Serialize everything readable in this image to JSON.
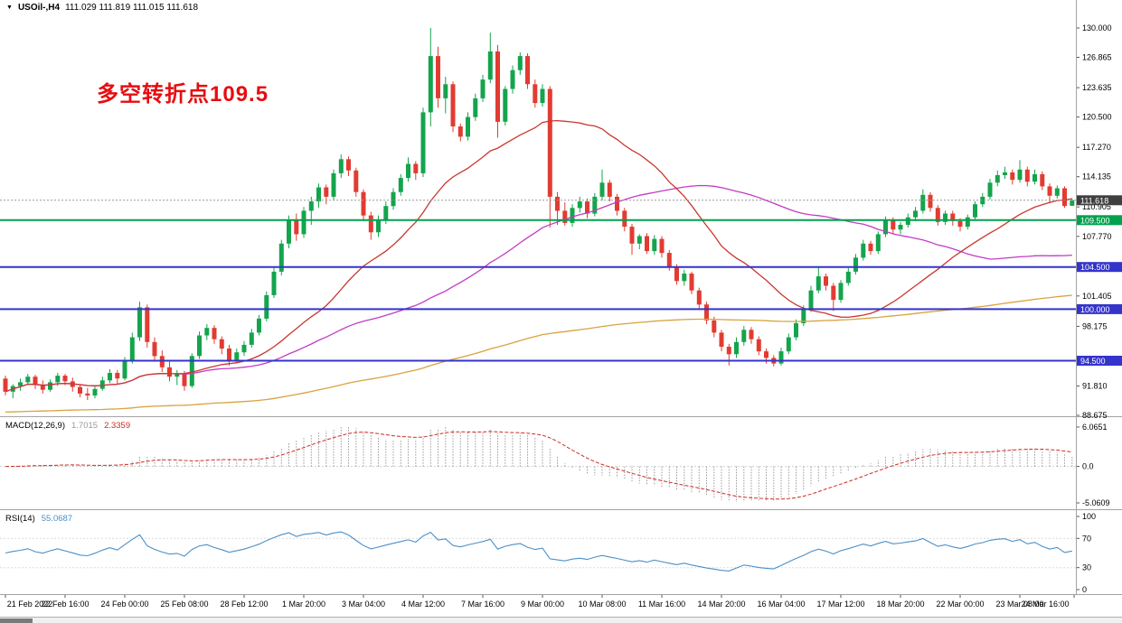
{
  "header": {
    "marker": "▼",
    "symbol": "USOil-,H4",
    "ohlc": "111.029 111.819 111.015 111.618"
  },
  "chart_data": {
    "type": "candlestick",
    "symbol": "USOil-",
    "timeframe": "H4",
    "x_axis": {
      "labels": [
        "21 Feb 2022",
        "22 Feb 16:00",
        "24 Feb 00:00",
        "25 Feb 08:00",
        "28 Feb 12:00",
        "1 Mar 20:00",
        "3 Mar 04:00",
        "4 Mar 12:00",
        "7 Mar 16:00",
        "9 Mar 00:00",
        "10 Mar 08:00",
        "11 Mar 16:00",
        "14 Mar 20:00",
        "16 Mar 04:00",
        "17 Mar 12:00",
        "18 Mar 20:00",
        "22 Mar 00:00",
        "23 Mar 08:00",
        "24 Mar 16:00"
      ]
    },
    "price_panel": {
      "ylim": [
        88.675,
        130.0
      ],
      "y_ticks": [
        "130.000",
        "126.865",
        "123.635",
        "120.500",
        "117.270",
        "114.135",
        "110.905",
        "107.770",
        "101.405",
        "98.175",
        "91.810",
        "88.675"
      ],
      "up_color": "#14a44d",
      "down_color": "#e23b31",
      "candles": [
        [
          92.6,
          92.9,
          90.8,
          91.2
        ],
        [
          91.2,
          92.0,
          90.5,
          91.8
        ],
        [
          91.8,
          92.6,
          91.3,
          92.2
        ],
        [
          92.2,
          93.1,
          91.9,
          92.8
        ],
        [
          92.8,
          93.0,
          91.5,
          91.9
        ],
        [
          91.9,
          92.4,
          91.0,
          91.4
        ],
        [
          91.4,
          92.5,
          91.2,
          92.2
        ],
        [
          92.2,
          93.2,
          91.8,
          92.9
        ],
        [
          92.9,
          93.1,
          91.9,
          92.3
        ],
        [
          92.3,
          92.7,
          91.2,
          91.7
        ],
        [
          91.7,
          92.0,
          90.6,
          91.0
        ],
        [
          91.0,
          91.6,
          90.3,
          90.8
        ],
        [
          90.8,
          91.9,
          90.5,
          91.5
        ],
        [
          91.5,
          92.8,
          91.3,
          92.4
        ],
        [
          92.4,
          93.6,
          92.1,
          93.2
        ],
        [
          93.2,
          93.5,
          92.0,
          92.6
        ],
        [
          92.6,
          94.9,
          92.4,
          94.5
        ],
        [
          94.5,
          97.5,
          94.2,
          97.0
        ],
        [
          97.0,
          100.8,
          96.6,
          100.2
        ],
        [
          100.2,
          100.5,
          95.9,
          96.5
        ],
        [
          96.5,
          97.0,
          94.4,
          95.0
        ],
        [
          95.0,
          95.6,
          93.3,
          93.8
        ],
        [
          93.8,
          94.4,
          92.3,
          92.8
        ],
        [
          92.8,
          93.5,
          91.9,
          93.1
        ],
        [
          93.1,
          93.4,
          91.3,
          91.8
        ],
        [
          91.8,
          95.3,
          91.6,
          95.0
        ],
        [
          95.0,
          97.6,
          94.7,
          97.2
        ],
        [
          97.2,
          98.4,
          96.7,
          98.0
        ],
        [
          98.0,
          98.3,
          96.3,
          96.8
        ],
        [
          96.8,
          97.1,
          95.2,
          95.8
        ],
        [
          95.8,
          96.2,
          94.0,
          94.6
        ],
        [
          94.6,
          95.8,
          94.2,
          95.4
        ],
        [
          95.4,
          96.6,
          95.0,
          96.2
        ],
        [
          96.2,
          97.9,
          95.9,
          97.5
        ],
        [
          97.5,
          99.4,
          97.2,
          99.0
        ],
        [
          99.0,
          101.9,
          98.7,
          101.5
        ],
        [
          101.5,
          104.5,
          101.2,
          104.0
        ],
        [
          104.0,
          107.4,
          103.6,
          107.0
        ],
        [
          107.0,
          110.0,
          106.5,
          109.5
        ],
        [
          109.5,
          110.2,
          107.3,
          108.0
        ],
        [
          108.0,
          110.9,
          107.6,
          110.5
        ],
        [
          110.5,
          112.0,
          109.0,
          111.5
        ],
        [
          111.5,
          113.4,
          110.8,
          113.0
        ],
        [
          113.0,
          113.3,
          111.2,
          112.0
        ],
        [
          112.0,
          114.9,
          111.6,
          114.5
        ],
        [
          114.5,
          116.5,
          114.0,
          116.0
        ],
        [
          116.0,
          116.3,
          114.2,
          114.8
        ],
        [
          114.8,
          115.1,
          112.0,
          112.5
        ],
        [
          112.5,
          112.8,
          109.4,
          110.0
        ],
        [
          110.0,
          110.4,
          107.4,
          108.2
        ],
        [
          108.2,
          110.0,
          107.7,
          109.5
        ],
        [
          109.5,
          111.5,
          109.1,
          111.0
        ],
        [
          111.0,
          112.9,
          110.6,
          112.5
        ],
        [
          112.5,
          114.4,
          112.1,
          114.0
        ],
        [
          114.0,
          116.2,
          113.6,
          115.5
        ],
        [
          115.5,
          115.8,
          113.8,
          114.5
        ],
        [
          114.5,
          121.5,
          114.1,
          121.0
        ],
        [
          121.0,
          130.0,
          119.5,
          127.0
        ],
        [
          127.0,
          128.0,
          121.5,
          122.5
        ],
        [
          122.5,
          124.8,
          120.9,
          124.0
        ],
        [
          124.0,
          124.3,
          118.9,
          119.5
        ],
        [
          119.5,
          119.8,
          117.9,
          118.4
        ],
        [
          118.4,
          121.0,
          118.0,
          120.5
        ],
        [
          120.5,
          123.0,
          120.1,
          122.5
        ],
        [
          122.5,
          125.0,
          122.1,
          124.5
        ],
        [
          124.5,
          129.5,
          124.1,
          127.5
        ],
        [
          127.5,
          128.2,
          118.3,
          120.0
        ],
        [
          120.0,
          123.8,
          119.6,
          123.5
        ],
        [
          123.5,
          126.0,
          123.0,
          125.5
        ],
        [
          125.5,
          127.4,
          125.0,
          127.0
        ],
        [
          127.0,
          127.3,
          123.5,
          124.0
        ],
        [
          124.0,
          124.5,
          121.5,
          122.0
        ],
        [
          122.0,
          124.0,
          121.6,
          123.5
        ],
        [
          123.5,
          123.8,
          108.7,
          112.0
        ],
        [
          112.0,
          112.5,
          109.0,
          110.5
        ],
        [
          110.5,
          111.4,
          108.9,
          109.2
        ],
        [
          109.2,
          111.2,
          108.8,
          110.8
        ],
        [
          110.8,
          112.0,
          110.3,
          111.5
        ],
        [
          111.5,
          111.8,
          109.7,
          110.2
        ],
        [
          110.2,
          112.4,
          109.9,
          112.0
        ],
        [
          112.0,
          114.9,
          111.6,
          113.5
        ],
        [
          113.5,
          113.8,
          111.5,
          112.0
        ],
        [
          112.0,
          112.3,
          110.0,
          110.5
        ],
        [
          110.5,
          110.8,
          108.3,
          108.8
        ],
        [
          108.8,
          109.1,
          105.8,
          107.0
        ],
        [
          107.0,
          108.0,
          106.4,
          107.8
        ],
        [
          107.8,
          108.1,
          105.9,
          106.2
        ],
        [
          106.2,
          107.9,
          105.8,
          107.5
        ],
        [
          107.5,
          107.8,
          105.5,
          106.0
        ],
        [
          106.0,
          106.3,
          104.1,
          104.5
        ],
        [
          104.5,
          104.8,
          102.6,
          103.0
        ],
        [
          103.0,
          104.2,
          102.5,
          103.8
        ],
        [
          103.8,
          104.0,
          101.6,
          102.0
        ],
        [
          102.0,
          102.3,
          100.1,
          100.5
        ],
        [
          100.5,
          100.8,
          98.4,
          98.8
        ],
        [
          98.8,
          99.2,
          97.0,
          97.5
        ],
        [
          97.5,
          97.8,
          95.5,
          96.0
        ],
        [
          96.0,
          96.3,
          94.0,
          95.2
        ],
        [
          95.2,
          97.0,
          94.8,
          96.5
        ],
        [
          96.5,
          98.2,
          96.1,
          97.8
        ],
        [
          97.8,
          98.1,
          96.3,
          96.8
        ],
        [
          96.8,
          97.1,
          95.1,
          95.5
        ],
        [
          95.5,
          95.8,
          94.2,
          94.8
        ],
        [
          94.8,
          95.1,
          93.9,
          94.2
        ],
        [
          94.2,
          95.9,
          94.0,
          95.5
        ],
        [
          95.5,
          97.4,
          95.2,
          97.0
        ],
        [
          97.0,
          98.9,
          96.7,
          98.5
        ],
        [
          98.5,
          100.4,
          98.2,
          100.0
        ],
        [
          100.0,
          102.5,
          99.7,
          102.0
        ],
        [
          102.0,
          104.6,
          101.7,
          103.5
        ],
        [
          103.5,
          103.8,
          102.0,
          102.5
        ],
        [
          102.5,
          102.8,
          99.8,
          101.0
        ],
        [
          101.0,
          103.1,
          100.7,
          102.8
        ],
        [
          102.8,
          104.4,
          102.5,
          104.0
        ],
        [
          104.0,
          105.9,
          103.7,
          105.5
        ],
        [
          105.5,
          107.4,
          105.2,
          107.0
        ],
        [
          107.0,
          107.3,
          105.8,
          106.2
        ],
        [
          106.2,
          108.3,
          105.9,
          108.0
        ],
        [
          108.0,
          109.9,
          107.7,
          109.5
        ],
        [
          109.5,
          109.8,
          108.1,
          108.5
        ],
        [
          108.5,
          109.3,
          108.0,
          109.0
        ],
        [
          109.0,
          110.2,
          108.7,
          109.8
        ],
        [
          109.8,
          110.9,
          109.4,
          110.5
        ],
        [
          110.5,
          112.8,
          110.2,
          112.2
        ],
        [
          112.2,
          112.5,
          110.4,
          110.8
        ],
        [
          110.8,
          111.1,
          108.9,
          109.3
        ],
        [
          109.3,
          110.5,
          109.0,
          110.2
        ],
        [
          110.2,
          110.5,
          108.9,
          109.4
        ],
        [
          109.4,
          109.7,
          108.3,
          108.8
        ],
        [
          108.8,
          110.1,
          108.5,
          109.8
        ],
        [
          109.8,
          111.5,
          109.5,
          111.2
        ],
        [
          111.2,
          112.4,
          110.9,
          112.0
        ],
        [
          112.0,
          113.9,
          111.7,
          113.5
        ],
        [
          113.5,
          114.8,
          113.1,
          114.3
        ],
        [
          114.3,
          115.2,
          113.9,
          114.6
        ],
        [
          114.6,
          114.9,
          113.3,
          113.8
        ],
        [
          113.8,
          115.9,
          113.5,
          114.9
        ],
        [
          114.9,
          115.2,
          113.1,
          113.6
        ],
        [
          113.6,
          114.9,
          113.3,
          114.4
        ],
        [
          114.4,
          114.7,
          112.7,
          113.1
        ],
        [
          113.1,
          113.4,
          111.3,
          112.1
        ],
        [
          112.1,
          113.2,
          111.8,
          112.9
        ],
        [
          112.9,
          113.1,
          110.8,
          111.0
        ],
        [
          111.03,
          111.82,
          111.02,
          111.62
        ]
      ],
      "moving_averages": [
        {
          "name": "fast-ma",
          "type": "sma",
          "period": 24,
          "color": "#c9372e"
        },
        {
          "name": "mid-ma",
          "type": "sma",
          "period": 60,
          "color": "#c33bc3"
        },
        {
          "name": "slow-ma",
          "type": "ema",
          "alpha": 0.008,
          "seed": 89.0,
          "color": "#d9a23f"
        }
      ],
      "horizontal_levels": [
        {
          "label": "109.500",
          "price": 109.5,
          "color": "#00a24e"
        },
        {
          "label": "104.500",
          "price": 104.5,
          "color": "#3434cb"
        },
        {
          "label": "100.000",
          "price": 100.0,
          "color": "#3434cb"
        },
        {
          "label": "94.500",
          "price": 94.5,
          "color": "#3434cb"
        }
      ],
      "current_price": {
        "label": "111.618",
        "value": 111.618,
        "badge_color": "#3f3f3f",
        "line_color": "#9a9a9a"
      },
      "annotation": {
        "text": "多空转折点109.5",
        "color": "#e60d10"
      }
    },
    "macd_panel": {
      "label": "MACD(12,26,9)",
      "params": [
        12,
        26,
        9
      ],
      "main_value": "1.7015",
      "signal_value": "2.3359",
      "axis_labels": [
        "6.0651",
        "0.0",
        "-5.0609"
      ],
      "hist_color": "#9a9a9a",
      "signal_color": "#cf2b25"
    },
    "rsi_panel": {
      "label": "RSI(14)",
      "period": 14,
      "value": "55.0687",
      "axis_labels": [
        "100",
        "70",
        "30",
        "0"
      ],
      "levels": [
        70,
        30
      ],
      "line_color": "#4a90c8"
    }
  }
}
